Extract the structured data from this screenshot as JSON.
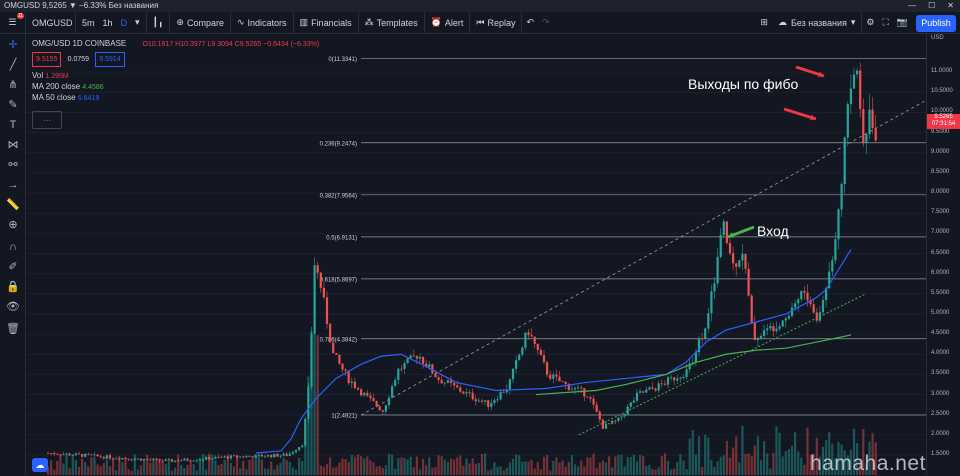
{
  "titlebar": {
    "text": "OMGUSD 9,5265 ▼ −6.33% Без названия"
  },
  "toolbar": {
    "badge": "11",
    "symbol": "OMGUSD",
    "intervals": [
      "5m",
      "1h",
      "D"
    ],
    "compare": "Compare",
    "indicators": "Indicators",
    "financials": "Financials",
    "templates": "Templates",
    "alert": "Alert",
    "replay": "Replay",
    "layout_name": "Без названия",
    "publish": "Publish"
  },
  "legend": {
    "symbol_line": "OMG/USD  1D  COINBASE",
    "ohlc": "O10.1617 H10.3977 L9.3094 C9.5265 −0.6434 (−6.33%)",
    "bid": "9.5155",
    "spread": "0.0759",
    "ask": "9.5914",
    "vol_label": "Vol",
    "vol_value": "1.295M",
    "ma200_label": "MA 200 close",
    "ma200_value": "4.4586",
    "ma50_label": "MA 50 close",
    "ma50_value": "6.6419"
  },
  "colors": {
    "up": "#26a69a",
    "down": "#ef5350",
    "ma50": "#2962ff",
    "ma200": "#4caf50",
    "fib": "#787b86",
    "trend": "#9aa0a6",
    "arrow_red": "#f23645",
    "arrow_green": "#4caf50"
  },
  "price_scale": {
    "currency_top": "USD",
    "labels": [
      "11.0000",
      "10.5000",
      "10.0000",
      "9.5000",
      "9.0000",
      "8.5000",
      "8.0000",
      "7.5000",
      "7.0000",
      "6.5000",
      "6.0000",
      "5.5000",
      "5.0000",
      "4.5000",
      "4.0000",
      "3.5000",
      "3.0000",
      "2.5000",
      "2.0000",
      "1.5000"
    ],
    "current_price": "9.5265",
    "countdown": "07:31:54"
  },
  "fib_levels": [
    {
      "label": "0(11.3341)",
      "value": 11.3341
    },
    {
      "label": "0.236(9.2474)",
      "value": 9.2474
    },
    {
      "label": "0.382(7.9564)",
      "value": 7.9564
    },
    {
      "label": "0.5(6.9131)",
      "value": 6.9131
    },
    {
      "label": "0.618(5.8697)",
      "value": 5.8697
    },
    {
      "label": "0.786(4.3842)",
      "value": 4.3842
    },
    {
      "label": "1(2.4921)",
      "value": 2.4921
    }
  ],
  "annotations": {
    "exit": "Выходы по фибо",
    "entry": "Вход"
  },
  "watermark": "hamaha.net"
}
